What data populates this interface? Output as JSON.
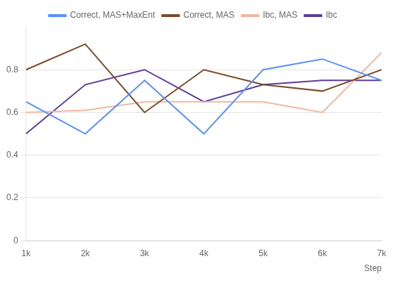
{
  "chart_data": {
    "type": "line",
    "x": [
      1000,
      2000,
      3000,
      4000,
      5000,
      6000,
      7000
    ],
    "series": [
      {
        "name": "Correct, MAS+MaxEnt",
        "color": "#5b8ff9",
        "values": [
          0.65,
          0.5,
          0.75,
          0.5,
          0.8,
          0.85,
          0.75
        ]
      },
      {
        "name": "Correct, MAS",
        "color": "#7b4a2a",
        "values": [
          0.8,
          0.92,
          0.6,
          0.8,
          0.73,
          0.7,
          0.8
        ]
      },
      {
        "name": "Ibc, MAS",
        "color": "#f0b8a0",
        "values": [
          0.6,
          0.61,
          0.65,
          0.65,
          0.65,
          0.6,
          0.88
        ]
      },
      {
        "name": "Ibc",
        "color": "#5c3d99",
        "values": [
          0.5,
          0.73,
          0.8,
          0.65,
          0.73,
          0.75,
          0.75
        ]
      }
    ],
    "x_label": "Step",
    "xlim": [
      1000,
      7000
    ],
    "xticks": [
      {
        "value": 1000,
        "label": "1k"
      },
      {
        "value": 2000,
        "label": "2k"
      },
      {
        "value": 3000,
        "label": "3k"
      },
      {
        "value": 4000,
        "label": "4k"
      },
      {
        "value": 5000,
        "label": "5k"
      },
      {
        "value": 6000,
        "label": "6k"
      },
      {
        "value": 7000,
        "label": "7k"
      }
    ],
    "ylim": [
      0,
      1.0
    ],
    "yticks": [
      0,
      0.2,
      0.4,
      0.6,
      0.8
    ],
    "grid": "y",
    "legend": "top"
  }
}
